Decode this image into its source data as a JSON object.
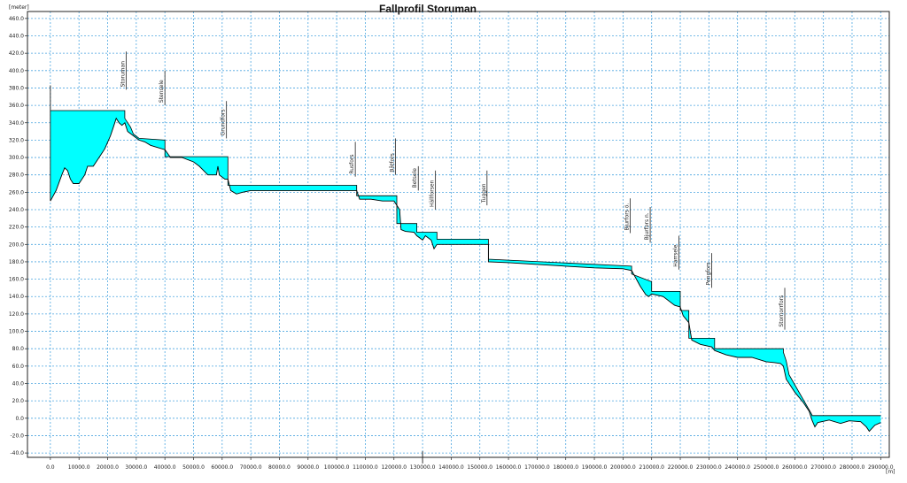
{
  "chart_data": {
    "type": "area",
    "title": "Fallprofil Storuman",
    "ylabel": "[meter]",
    "xlabel": "[m]",
    "xlim": [
      -8000,
      293000
    ],
    "ylim": [
      -45,
      468
    ],
    "xticks": [
      0,
      10000,
      20000,
      30000,
      40000,
      50000,
      60000,
      70000,
      80000,
      90000,
      100000,
      110000,
      120000,
      130000,
      140000,
      150000,
      160000,
      170000,
      180000,
      190000,
      200000,
      210000,
      220000,
      230000,
      240000,
      250000,
      260000,
      270000,
      280000,
      290000
    ],
    "xtick_labels": [
      "0.0",
      "10000.0",
      "20000.0",
      "30000.0",
      "40000.0",
      "50000.0",
      "60000.0",
      "70000.0",
      "80000.0",
      "90000.0",
      "100000.0",
      "110000.0",
      "120000.0",
      "130000.0",
      "140000.0",
      "150000.0",
      "160000.0",
      "170000.0",
      "180000.0",
      "190000.0",
      "200000.0",
      "210000.0",
      "220000.0",
      "230000.0",
      "240000.0",
      "250000.0",
      "260000.0",
      "270000.0",
      "280000.0",
      "290000.0"
    ],
    "yticks": [
      -40,
      -20,
      0,
      20,
      40,
      60,
      80,
      100,
      120,
      140,
      160,
      180,
      200,
      220,
      240,
      260,
      280,
      300,
      320,
      340,
      360,
      380,
      400,
      420,
      440,
      460
    ],
    "ytick_labels": [
      "-40.0",
      "-20.0",
      "0.0",
      "20.0",
      "40.0",
      "60.0",
      "80.0",
      "100.0",
      "120.0",
      "140.0",
      "160.0",
      "180.0",
      "200.0",
      "220.0",
      "240.0",
      "260.0",
      "280.0",
      "300.0",
      "320.0",
      "340.0",
      "360.0",
      "380.0",
      "400.0",
      "420.0",
      "440.0",
      "460.0"
    ],
    "grid": true,
    "colors": {
      "fill": "#00ffff",
      "line": "#000000",
      "grid": "#4da6e0",
      "frame": "#222222"
    },
    "series": [
      {
        "water_surface": [
          [
            0,
            354
          ],
          [
            26000,
            354
          ],
          [
            26000,
            345
          ],
          [
            28000,
            335
          ],
          [
            29000,
            327
          ],
          [
            31000,
            322
          ],
          [
            40000,
            320
          ],
          [
            40000,
            310
          ],
          [
            40000,
            301
          ],
          [
            62000,
            301
          ],
          [
            62000,
            270
          ],
          [
            62000,
            268
          ],
          [
            107000,
            268
          ],
          [
            107000,
            256
          ],
          [
            121000,
            256
          ],
          [
            121000,
            243
          ],
          [
            121000,
            224
          ],
          [
            128000,
            224
          ],
          [
            128000,
            214
          ],
          [
            135000,
            214
          ],
          [
            135000,
            206
          ],
          [
            153000,
            206
          ],
          [
            153000,
            183
          ],
          [
            203000,
            175
          ],
          [
            203000,
            166
          ],
          [
            210000,
            157
          ],
          [
            210000,
            146
          ],
          [
            220000,
            146
          ],
          [
            220000,
            124
          ],
          [
            223000,
            124
          ],
          [
            223000,
            111
          ],
          [
            223000,
            92
          ],
          [
            232000,
            92
          ],
          [
            232000,
            80
          ],
          [
            256000,
            80
          ],
          [
            256000,
            76
          ],
          [
            257000,
            66
          ],
          [
            258000,
            50
          ],
          [
            266000,
            4
          ],
          [
            266000,
            3
          ],
          [
            290000,
            3
          ]
        ],
        "bed": [
          [
            0,
            250
          ],
          [
            2000,
            262
          ],
          [
            4000,
            280
          ],
          [
            5000,
            288
          ],
          [
            6000,
            285
          ],
          [
            7000,
            275
          ],
          [
            8000,
            270
          ],
          [
            10000,
            270
          ],
          [
            12000,
            280
          ],
          [
            13000,
            290
          ],
          [
            15000,
            290
          ],
          [
            17000,
            300
          ],
          [
            19000,
            310
          ],
          [
            21000,
            325
          ],
          [
            22000,
            335
          ],
          [
            23000,
            345
          ],
          [
            24000,
            340
          ],
          [
            25000,
            337
          ],
          [
            26000,
            340
          ],
          [
            27000,
            330
          ],
          [
            29000,
            325
          ],
          [
            31000,
            320
          ],
          [
            33000,
            318
          ],
          [
            35000,
            314
          ],
          [
            37000,
            312
          ],
          [
            40000,
            309
          ],
          [
            42000,
            300
          ],
          [
            46000,
            300
          ],
          [
            50000,
            295
          ],
          [
            52000,
            290
          ],
          [
            55000,
            280
          ],
          [
            58000,
            280
          ],
          [
            58500,
            290
          ],
          [
            59000,
            280
          ],
          [
            61000,
            275
          ],
          [
            62000,
            275
          ],
          [
            63000,
            262
          ],
          [
            65000,
            258
          ],
          [
            67000,
            260
          ],
          [
            70000,
            262
          ],
          [
            80000,
            262
          ],
          [
            90000,
            262
          ],
          [
            100000,
            262
          ],
          [
            107000,
            262
          ],
          [
            108000,
            252
          ],
          [
            112000,
            252
          ],
          [
            116000,
            250
          ],
          [
            120000,
            250
          ],
          [
            122000,
            240
          ],
          [
            122500,
            217
          ],
          [
            124000,
            215
          ],
          [
            127000,
            214
          ],
          [
            128000,
            210
          ],
          [
            130000,
            205
          ],
          [
            131000,
            210
          ],
          [
            133000,
            205
          ],
          [
            134000,
            195
          ],
          [
            135000,
            200
          ],
          [
            140000,
            200
          ],
          [
            145000,
            200
          ],
          [
            153000,
            200
          ],
          [
            153000,
            180
          ],
          [
            160000,
            179
          ],
          [
            170000,
            177
          ],
          [
            180000,
            175
          ],
          [
            190000,
            173
          ],
          [
            200000,
            172
          ],
          [
            203000,
            170
          ],
          [
            206000,
            152
          ],
          [
            208000,
            142
          ],
          [
            209000,
            140
          ],
          [
            210000,
            143
          ],
          [
            214000,
            140
          ],
          [
            218000,
            130
          ],
          [
            220000,
            128
          ],
          [
            221000,
            118
          ],
          [
            222000,
            114
          ],
          [
            223000,
            110
          ],
          [
            224000,
            90
          ],
          [
            227000,
            85
          ],
          [
            231000,
            82
          ],
          [
            232000,
            78
          ],
          [
            236000,
            73
          ],
          [
            240000,
            70
          ],
          [
            245000,
            70
          ],
          [
            250000,
            65
          ],
          [
            253000,
            64
          ],
          [
            255000,
            63
          ],
          [
            256000,
            60
          ],
          [
            257000,
            45
          ],
          [
            258000,
            40
          ],
          [
            260000,
            30
          ],
          [
            263000,
            18
          ],
          [
            265000,
            8
          ],
          [
            266000,
            -2
          ],
          [
            267000,
            -10
          ],
          [
            268000,
            -5
          ],
          [
            272000,
            -2
          ],
          [
            276000,
            -6
          ],
          [
            279000,
            -3
          ],
          [
            283000,
            -4
          ],
          [
            285000,
            -10
          ],
          [
            286000,
            -15
          ],
          [
            288000,
            -8
          ],
          [
            290000,
            -5
          ]
        ]
      }
    ],
    "stations": [
      {
        "name": "Storuman",
        "x": 26500,
        "y_top": 422,
        "y_bottom": 378
      },
      {
        "name": "Stensele",
        "x": 40000,
        "y_top": 400,
        "y_bottom": 360
      },
      {
        "name": "Grundfors",
        "x": 61500,
        "y_top": 365,
        "y_bottom": 322
      },
      {
        "name": "Rusfors",
        "x": 106500,
        "y_top": 318,
        "y_bottom": 278
      },
      {
        "name": "Båtfors",
        "x": 120500,
        "y_top": 322,
        "y_bottom": 280
      },
      {
        "name": "Betsele",
        "x": 128500,
        "y_top": 290,
        "y_bottom": 262
      },
      {
        "name": "Hällforsen",
        "x": 134500,
        "y_top": 285,
        "y_bottom": 240
      },
      {
        "name": "Tuggen",
        "x": 152500,
        "y_top": 285,
        "y_bottom": 245
      },
      {
        "name": "Bjurfors ö.",
        "x": 202500,
        "y_top": 253,
        "y_bottom": 213
      },
      {
        "name": "Bjurfors n.",
        "x": 209500,
        "y_top": 243,
        "y_bottom": 202
      },
      {
        "name": "Harrsele",
        "x": 219500,
        "y_top": 210,
        "y_bottom": 171
      },
      {
        "name": "Pengfors",
        "x": 231000,
        "y_top": 190,
        "y_bottom": 150
      },
      {
        "name": "Stornorrfors",
        "x": 256500,
        "y_top": 150,
        "y_bottom": 102
      }
    ]
  }
}
